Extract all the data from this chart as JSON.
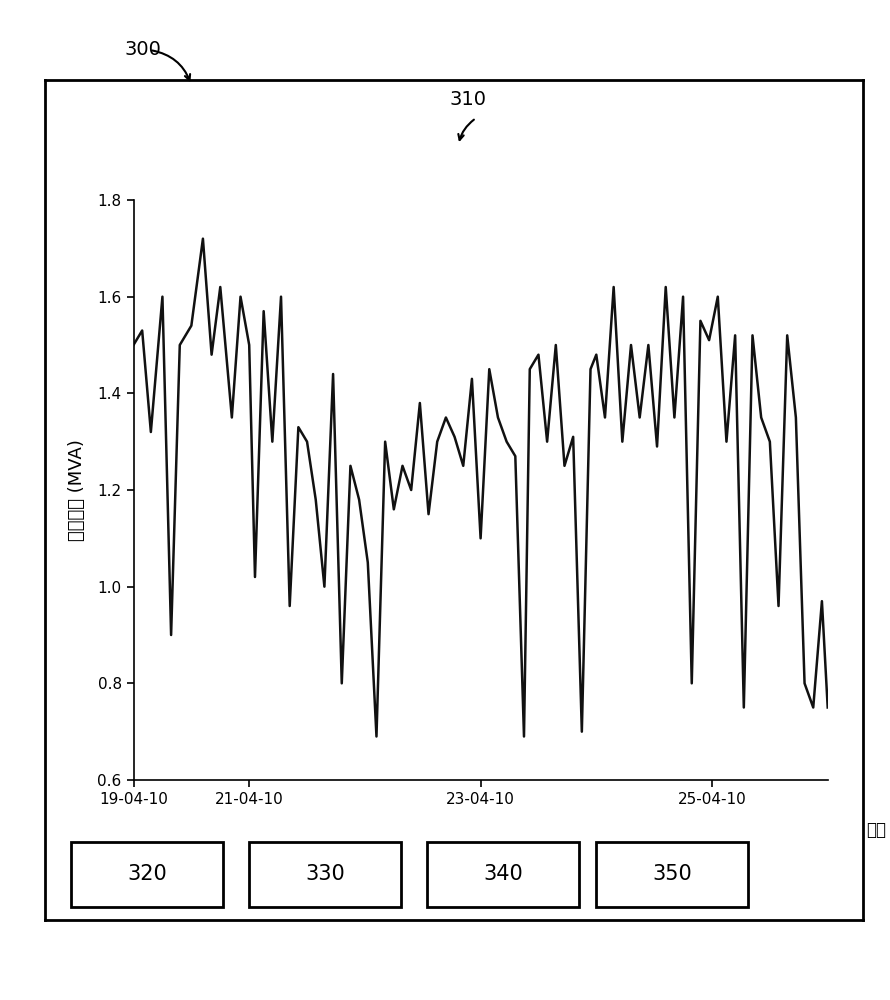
{
  "title_label": "300",
  "label_310": "310",
  "ylabel": "绝对功率 (MVA)",
  "xlabel": "时间",
  "ylim": [
    0.6,
    1.8
  ],
  "yticks": [
    0.6,
    0.8,
    1.0,
    1.2,
    1.4,
    1.6,
    1.8
  ],
  "x_dates": [
    "19-04-10",
    "21-04-10",
    "23-04-10",
    "25-04-10"
  ],
  "background_color": "#ffffff",
  "line_color": "#111111",
  "line_width": 1.8,
  "box_labels": [
    "320",
    "330",
    "340",
    "350"
  ],
  "data_x": [
    0,
    0.15,
    0.3,
    0.5,
    0.65,
    0.8,
    1.0,
    1.2,
    1.35,
    1.5,
    1.7,
    1.85,
    2.0,
    2.1,
    2.25,
    2.4,
    2.55,
    2.7,
    2.85,
    3.0,
    3.15,
    3.3,
    3.45,
    3.6,
    3.75,
    3.9,
    4.05,
    4.2,
    4.35,
    4.5,
    4.65,
    4.8,
    4.95,
    5.1,
    5.25,
    5.4,
    5.55,
    5.7,
    5.85,
    6.0,
    6.15,
    6.3,
    6.45,
    6.6,
    6.75,
    6.85,
    7.0,
    7.15,
    7.3,
    7.45,
    7.6,
    7.75,
    7.9,
    8.0,
    8.15,
    8.3,
    8.45,
    8.6,
    8.75,
    8.9,
    9.05,
    9.2,
    9.35,
    9.5,
    9.65,
    9.8,
    9.95,
    10.1,
    10.25,
    10.4,
    10.55,
    10.7,
    10.85,
    11.0,
    11.15,
    11.3,
    11.45,
    11.6,
    11.75,
    11.9,
    12.0
  ],
  "data_y": [
    1.5,
    1.53,
    1.32,
    1.6,
    0.9,
    1.5,
    1.54,
    1.72,
    1.48,
    1.62,
    1.35,
    1.6,
    1.5,
    1.02,
    1.57,
    1.3,
    1.6,
    0.96,
    1.33,
    1.3,
    1.18,
    1.0,
    1.44,
    0.8,
    1.25,
    1.18,
    1.05,
    0.69,
    1.3,
    1.16,
    1.25,
    1.2,
    1.38,
    1.15,
    1.3,
    1.35,
    1.31,
    1.25,
    1.43,
    1.1,
    1.45,
    1.35,
    1.3,
    1.27,
    0.69,
    1.45,
    1.48,
    1.3,
    1.5,
    1.25,
    1.31,
    0.7,
    1.45,
    1.48,
    1.35,
    1.62,
    1.3,
    1.5,
    1.35,
    1.5,
    1.29,
    1.62,
    1.35,
    1.6,
    0.8,
    1.55,
    1.51,
    1.6,
    1.3,
    1.52,
    0.75,
    1.52,
    1.35,
    1.3,
    0.96,
    1.52,
    1.35,
    0.8,
    0.75,
    0.97,
    0.75
  ]
}
